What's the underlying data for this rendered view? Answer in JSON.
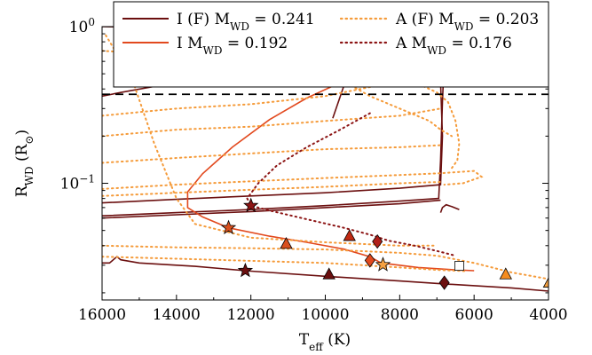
{
  "chart_data": {
    "type": "line",
    "title": "",
    "xlabel": "T",
    "xlabel_sub": "eff",
    "xlabel_unit": " (K)",
    "ylabel": "R",
    "ylabel_sub": "WD",
    "ylabel_unit": " (R",
    "ylabel_unit_sub": "⊙",
    "ylabel_close": ")",
    "x_axis_reversed": true,
    "xlim": [
      16000,
      4000
    ],
    "ylim": [
      0.018,
      1.0
    ],
    "y_scale": "log",
    "xticks": [
      16000,
      14000,
      12000,
      10000,
      8000,
      6000,
      4000
    ],
    "xtick_labels": [
      "16000",
      "14000",
      "12000",
      "10000",
      "8000",
      "6000",
      "4000"
    ],
    "yticks": [
      {
        "value": 1.0,
        "base": "10",
        "exp": "0"
      },
      {
        "value": 0.1,
        "base": "10",
        "exp": "−1"
      }
    ],
    "grid": false,
    "legend": {
      "placement": "top-right",
      "entries": [
        {
          "text": "I (F) M",
          "sub": "WD",
          "value": " = 0.241",
          "color": "#6b0f0f",
          "style": "solid"
        },
        {
          "text": "A (F) M",
          "sub": "WD",
          "value": " = 0.203",
          "color": "#f59b3a",
          "style": "dotted"
        },
        {
          "text": "I M",
          "sub": "WD",
          "value": " = 0.192",
          "color": "#e2491e",
          "style": "solid"
        },
        {
          "text": "A M",
          "sub": "WD",
          "value": " = 0.176",
          "color": "#8c1414",
          "style": "dotted"
        }
      ]
    },
    "reference_line": {
      "y": 0.37,
      "style": "dashed",
      "color": "#000000"
    },
    "series": [
      {
        "name": "I (F) M_WD = 0.241",
        "color": "#6b0f0f",
        "style": "solid",
        "segments": [
          [
            [
              16000,
              0.031
            ],
            [
              15800,
              0.031
            ],
            [
              15600,
              0.034
            ],
            [
              15500,
              0.0325
            ],
            [
              15000,
              0.031
            ],
            [
              13500,
              0.0295
            ],
            [
              12000,
              0.0275
            ],
            [
              10000,
              0.0255
            ],
            [
              8000,
              0.0238
            ],
            [
              6800,
              0.0228
            ],
            [
              5000,
              0.0215
            ],
            [
              4000,
              0.0205
            ]
          ],
          [
            [
              16000,
              0.062
            ],
            [
              14000,
              0.065
            ],
            [
              12000,
              0.068
            ],
            [
              10000,
              0.072
            ],
            [
              8000,
              0.077
            ],
            [
              6950,
              0.08
            ],
            [
              6900,
              0.14
            ],
            [
              6850,
              0.33
            ],
            [
              6800,
              0.63
            ],
            [
              7000,
              0.65
            ],
            [
              8000,
              0.64
            ],
            [
              9500,
              0.6
            ],
            [
              11000,
              0.55
            ],
            [
              12500,
              0.5
            ],
            [
              14000,
              0.44
            ],
            [
              15500,
              0.38
            ],
            [
              16000,
              0.36
            ]
          ],
          [
            [
              16000,
              0.075
            ],
            [
              14000,
              0.079
            ],
            [
              12000,
              0.083
            ],
            [
              10000,
              0.087
            ],
            [
              8000,
              0.093
            ],
            [
              6900,
              0.098
            ],
            [
              6850,
              0.2
            ],
            [
              6900,
              0.44
            ],
            [
              8000,
              0.58
            ],
            [
              10000,
              0.75
            ],
            [
              12000,
              0.88
            ],
            [
              14000,
              0.98
            ],
            [
              16000,
              1.0
            ]
          ],
          [
            [
              16000,
              0.06
            ],
            [
              14000,
              0.063
            ],
            [
              12000,
              0.066
            ],
            [
              10000,
              0.07
            ],
            [
              8000,
              0.074
            ],
            [
              6900,
              0.078
            ]
          ],
          [
            [
              9800,
              0.26
            ],
            [
              9500,
              0.42
            ],
            [
              8800,
              0.46
            ],
            [
              7800,
              0.52
            ],
            [
              6950,
              0.55
            ]
          ],
          [
            [
              6900,
              0.065
            ],
            [
              6850,
              0.07
            ],
            [
              6750,
              0.073
            ],
            [
              6600,
              0.071
            ],
            [
              6400,
              0.068
            ]
          ]
        ]
      },
      {
        "name": "I M_WD = 0.192",
        "color": "#e2491e",
        "style": "solid",
        "segments": [
          [
            [
              8500,
              0.56
            ],
            [
              9500,
              0.45
            ],
            [
              10500,
              0.35
            ],
            [
              11500,
              0.255
            ],
            [
              12500,
              0.17
            ],
            [
              13300,
              0.115
            ],
            [
              13700,
              0.088
            ],
            [
              13700,
              0.07
            ],
            [
              13300,
              0.061
            ],
            [
              12600,
              0.052
            ],
            [
              11500,
              0.046
            ],
            [
              10500,
              0.042
            ],
            [
              9500,
              0.038
            ],
            [
              8800,
              0.034
            ],
            [
              8500,
              0.031
            ],
            [
              7500,
              0.029
            ],
            [
              6500,
              0.028
            ],
            [
              6000,
              0.0277
            ]
          ]
        ]
      },
      {
        "name": "A (F) M_WD = 0.203",
        "color": "#f59b3a",
        "style": "dotted",
        "segments": [
          [
            [
              15900,
              0.88
            ],
            [
              15200,
              0.47
            ],
            [
              14600,
              0.18
            ],
            [
              14000,
              0.08
            ],
            [
              13500,
              0.055
            ],
            [
              12000,
              0.045
            ],
            [
              10000,
              0.042
            ],
            [
              8000,
              0.04
            ],
            [
              7000,
              0.04
            ]
          ],
          [
            [
              16000,
              0.27
            ],
            [
              14000,
              0.3
            ],
            [
              12000,
              0.32
            ],
            [
              10000,
              0.36
            ],
            [
              8000,
              0.45
            ],
            [
              7000,
              0.6
            ],
            [
              6400,
              0.75
            ]
          ],
          [
            [
              16000,
              0.2
            ],
            [
              14000,
              0.22
            ],
            [
              12000,
              0.23
            ],
            [
              10000,
              0.25
            ],
            [
              8000,
              0.27
            ],
            [
              6900,
              0.3
            ]
          ],
          [
            [
              16000,
              0.135
            ],
            [
              14000,
              0.145
            ],
            [
              12000,
              0.155
            ],
            [
              10000,
              0.165
            ],
            [
              8000,
              0.17
            ],
            [
              6900,
              0.175
            ]
          ],
          [
            [
              16000,
              0.092
            ],
            [
              14000,
              0.098
            ],
            [
              12000,
              0.103
            ],
            [
              10000,
              0.108
            ],
            [
              8000,
              0.113
            ],
            [
              6900,
              0.116
            ],
            [
              6000,
              0.12
            ],
            [
              5800,
              0.11
            ],
            [
              6300,
              0.1
            ],
            [
              6800,
              0.098
            ]
          ],
          [
            [
              16000,
              0.083
            ],
            [
              14000,
              0.087
            ],
            [
              12000,
              0.091
            ],
            [
              10000,
              0.095
            ],
            [
              8000,
              0.1
            ],
            [
              6900,
              0.102
            ]
          ],
          [
            [
              16000,
              0.04
            ],
            [
              14000,
              0.039
            ],
            [
              12000,
              0.0385
            ],
            [
              10000,
              0.0378
            ],
            [
              8000,
              0.036
            ],
            [
              7000,
              0.0345
            ],
            [
              6000,
              0.031
            ],
            [
              5000,
              0.027
            ],
            [
              4000,
              0.0245
            ]
          ],
          [
            [
              16000,
              0.034
            ],
            [
              14000,
              0.033
            ],
            [
              12000,
              0.032
            ],
            [
              10000,
              0.031
            ],
            [
              9000,
              0.03
            ],
            [
              8000,
              0.029
            ],
            [
              7000,
              0.028
            ],
            [
              6200,
              0.0275
            ]
          ],
          [
            [
              12500,
              0.9
            ],
            [
              11500,
              0.95
            ],
            [
              10500,
              0.6
            ],
            [
              9800,
              0.5
            ],
            [
              9300,
              0.42
            ],
            [
              8800,
              0.36
            ],
            [
              8000,
              0.3
            ],
            [
              7200,
              0.25
            ],
            [
              6900,
              0.22
            ],
            [
              6600,
              0.2
            ]
          ],
          [
            [
              8500,
              0.9
            ],
            [
              8200,
              0.7
            ],
            [
              7800,
              0.5
            ],
            [
              7400,
              0.42
            ],
            [
              7000,
              0.38
            ],
            [
              6700,
              0.33
            ],
            [
              6500,
              0.25
            ],
            [
              6400,
              0.18
            ],
            [
              6450,
              0.14
            ],
            [
              6600,
              0.125
            ]
          ],
          [
            [
              16000,
              0.7
            ],
            [
              15000,
              0.68
            ],
            [
              14000,
              0.6
            ],
            [
              13000,
              0.55
            ],
            [
              12000,
              0.5
            ]
          ]
        ]
      },
      {
        "name": "A M_WD = 0.176",
        "color": "#8c1414",
        "style": "dotted",
        "segments": [
          [
            [
              8800,
              0.28
            ],
            [
              9600,
              0.22
            ],
            [
              10500,
              0.17
            ],
            [
              11300,
              0.13
            ],
            [
              11800,
              0.1
            ],
            [
              12100,
              0.08
            ],
            [
              12000,
              0.072
            ],
            [
              11500,
              0.067
            ],
            [
              10500,
              0.059
            ],
            [
              9500,
              0.052
            ],
            [
              8800,
              0.047
            ],
            [
              8300,
              0.043
            ],
            [
              7600,
              0.04
            ],
            [
              6900,
              0.0365
            ],
            [
              6500,
              0.0345
            ]
          ]
        ]
      }
    ],
    "markers": [
      {
        "shape": "star",
        "x": 12000,
        "y": 0.072,
        "color": "#8c1414"
      },
      {
        "shape": "star",
        "x": 12600,
        "y": 0.052,
        "color": "#d9501e"
      },
      {
        "shape": "star",
        "x": 12150,
        "y": 0.0277,
        "color": "#6b0f0f"
      },
      {
        "shape": "star",
        "x": 8450,
        "y": 0.0302,
        "color": "#f5a142"
      },
      {
        "shape": "triangle",
        "x": 11050,
        "y": 0.041,
        "color": "#d9501e"
      },
      {
        "shape": "triangle",
        "x": 9350,
        "y": 0.046,
        "color": "#c02a14"
      },
      {
        "shape": "triangle",
        "x": 9900,
        "y": 0.0262,
        "color": "#6b0f0f"
      },
      {
        "shape": "triangle",
        "x": 5150,
        "y": 0.0262,
        "color": "#f58c1e"
      },
      {
        "shape": "triangle",
        "x": 3980,
        "y": 0.0232,
        "color": "#f5a142"
      },
      {
        "shape": "diamond",
        "x": 8600,
        "y": 0.0425,
        "color": "#b0201a"
      },
      {
        "shape": "diamond",
        "x": 8800,
        "y": 0.0322,
        "color": "#e2491e"
      },
      {
        "shape": "diamond",
        "x": 6800,
        "y": 0.0232,
        "color": "#6b0f0f"
      },
      {
        "shape": "square",
        "x": 6400,
        "y": 0.0297,
        "color": "#ffffff"
      }
    ]
  }
}
